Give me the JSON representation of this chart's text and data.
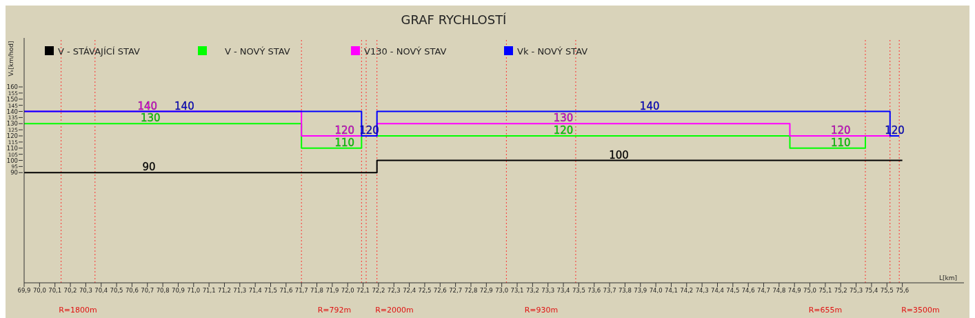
{
  "chart_data": {
    "type": "step",
    "title": "GRAF RYCHLOSTÍ",
    "xlabel": "L[km]",
    "ylabel": "Vₖ[km/hod]",
    "legend": "top",
    "marker": "none",
    "xlim": [
      69.9,
      76.0
    ],
    "ylim": [
      0,
      200
    ],
    "yticks": [
      90,
      95,
      100,
      105,
      110,
      115,
      120,
      125,
      130,
      135,
      140,
      145,
      150,
      155,
      160
    ],
    "xticks": [
      {
        "value": 69.9,
        "label": "69,9"
      },
      {
        "value": 70.0,
        "label": "70,0"
      },
      {
        "value": 70.1,
        "label": "70,1"
      },
      {
        "value": 70.2,
        "label": "70,2"
      },
      {
        "value": 70.3,
        "label": "70,3"
      },
      {
        "value": 70.4,
        "label": "70,4"
      },
      {
        "value": 70.5,
        "label": "70,5"
      },
      {
        "value": 70.6,
        "label": "70,6"
      },
      {
        "value": 70.7,
        "label": "70,7"
      },
      {
        "value": 70.8,
        "label": "70,8"
      },
      {
        "value": 70.9,
        "label": "70,9"
      },
      {
        "value": 71.0,
        "label": "71,0"
      },
      {
        "value": 71.1,
        "label": "71,1"
      },
      {
        "value": 71.2,
        "label": "71,2"
      },
      {
        "value": 71.3,
        "label": "71,3"
      },
      {
        "value": 71.4,
        "label": "71,4"
      },
      {
        "value": 71.5,
        "label": "71,5"
      },
      {
        "value": 71.6,
        "label": "71,6"
      },
      {
        "value": 71.7,
        "label": "71,7"
      },
      {
        "value": 71.8,
        "label": "71,8"
      },
      {
        "value": 71.9,
        "label": "71,9"
      },
      {
        "value": 72.0,
        "label": "72,0"
      },
      {
        "value": 72.1,
        "label": "72,1"
      },
      {
        "value": 72.2,
        "label": "72,2"
      },
      {
        "value": 72.3,
        "label": "72,3"
      },
      {
        "value": 72.4,
        "label": "72,4"
      },
      {
        "value": 72.5,
        "label": "72,5"
      },
      {
        "value": 72.6,
        "label": "72,6"
      },
      {
        "value": 72.7,
        "label": "72,7"
      },
      {
        "value": 72.8,
        "label": "72,8"
      },
      {
        "value": 72.9,
        "label": "72,9"
      },
      {
        "value": 73.0,
        "label": "73,0"
      },
      {
        "value": 73.1,
        "label": "73,1"
      },
      {
        "value": 73.2,
        "label": "73,2"
      },
      {
        "value": 73.3,
        "label": "73,3"
      },
      {
        "value": 73.4,
        "label": "73,4"
      },
      {
        "value": 73.5,
        "label": "73,5"
      },
      {
        "value": 73.6,
        "label": "73,6"
      },
      {
        "value": 73.7,
        "label": "73,7"
      },
      {
        "value": 73.8,
        "label": "73,8"
      },
      {
        "value": 73.9,
        "label": "73,9"
      },
      {
        "value": 74.0,
        "label": "74,0"
      },
      {
        "value": 74.1,
        "label": "74,1"
      },
      {
        "value": 74.2,
        "label": "74,2"
      },
      {
        "value": 74.3,
        "label": "74,3"
      },
      {
        "value": 74.4,
        "label": "74,4"
      },
      {
        "value": 74.5,
        "label": "74,5"
      },
      {
        "value": 74.6,
        "label": "74,6"
      },
      {
        "value": 74.7,
        "label": "74,7"
      },
      {
        "value": 74.8,
        "label": "74,8"
      },
      {
        "value": 74.9,
        "label": "74,9"
      },
      {
        "value": 75.0,
        "label": "75,0"
      },
      {
        "value": 75.1,
        "label": "75,1"
      },
      {
        "value": 75.2,
        "label": "75,2"
      },
      {
        "value": 75.3,
        "label": "75,3"
      },
      {
        "value": 75.4,
        "label": "75,4"
      },
      {
        "value": 75.5,
        "label": "75,5"
      },
      {
        "value": 75.6,
        "label": "75,6"
      }
    ],
    "series": [
      {
        "name": "V - STÁVAJÍCÍ STAV",
        "color": "#000000",
        "x": [
          69.9,
          70.71,
          72.19,
          73.76,
          75.6
        ],
        "values": [
          90,
          90,
          100,
          100,
          100
        ],
        "value_labels": [
          null,
          "90",
          null,
          "100",
          null
        ]
      },
      {
        "name": "V - NOVÝ STAV",
        "color": "#00ff00",
        "x": [
          69.9,
          70.72,
          71.7,
          71.98,
          72.09,
          73.4,
          74.87,
          75.2,
          75.36
        ],
        "values": [
          130,
          130,
          110,
          110,
          120,
          120,
          110,
          110,
          120
        ],
        "value_labels": [
          null,
          "130",
          null,
          "110",
          null,
          "120",
          null,
          "110",
          null
        ]
      },
      {
        "name": "V130 - NOVÝ STAV",
        "color": "#ff00ff",
        "x": [
          69.9,
          70.7,
          71.7,
          71.98,
          72.19,
          73.4,
          74.87,
          75.2,
          75.52
        ],
        "values": [
          140,
          140,
          120,
          120,
          130,
          130,
          120,
          120,
          120
        ],
        "value_labels": [
          null,
          "140",
          null,
          "120",
          null,
          "130",
          null,
          "120",
          null
        ]
      },
      {
        "name": "Vk - NOVÝ STAV",
        "color": "#0000ff",
        "x": [
          69.9,
          70.94,
          72.09,
          72.14,
          72.19,
          73.96,
          75.52,
          75.55,
          75.58
        ],
        "values": [
          140,
          140,
          120,
          120,
          140,
          140,
          120,
          120,
          120
        ],
        "value_labels": [
          null,
          "140",
          null,
          "120",
          null,
          "140",
          null,
          "120",
          null
        ]
      }
    ],
    "ref_lines": [
      {
        "axis": "x",
        "value": 70.14,
        "label": null,
        "color": "#ff3030",
        "line_style": "dotted"
      },
      {
        "axis": "x",
        "value": 70.36,
        "label": null,
        "color": "#ff3030",
        "line_style": "dotted"
      },
      {
        "axis": "x",
        "value": 71.7,
        "label": null,
        "color": "#ff3030",
        "line_style": "dotted"
      },
      {
        "axis": "x",
        "value": 72.09,
        "label": null,
        "color": "#ff3030",
        "line_style": "dotted"
      },
      {
        "axis": "x",
        "value": 72.12,
        "label": null,
        "color": "#ff3030",
        "line_style": "dotted"
      },
      {
        "axis": "x",
        "value": 72.19,
        "label": null,
        "color": "#ff3030",
        "line_style": "dotted"
      },
      {
        "axis": "x",
        "value": 73.03,
        "label": null,
        "color": "#ff3030",
        "line_style": "dotted"
      },
      {
        "axis": "x",
        "value": 73.48,
        "label": null,
        "color": "#ff3030",
        "line_style": "dotted"
      },
      {
        "axis": "x",
        "value": 75.36,
        "label": null,
        "color": "#ff3030",
        "line_style": "dotted"
      },
      {
        "axis": "x",
        "value": 75.52,
        "label": null,
        "color": "#ff3030",
        "line_style": "dotted"
      },
      {
        "axis": "x",
        "value": 75.58,
        "label": null,
        "color": "#ff3030",
        "line_style": "dotted"
      }
    ],
    "annotations": [
      "R=1800m",
      "R=792m",
      "R=2000m",
      "R=930m",
      "R=655m",
      "R=3500m"
    ]
  }
}
